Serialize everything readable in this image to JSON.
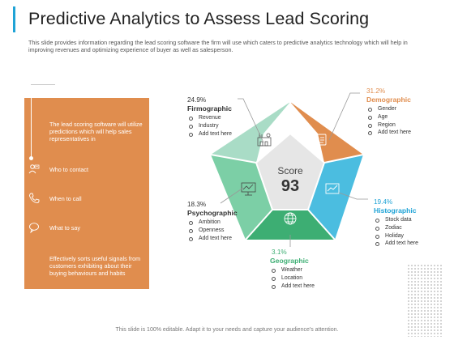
{
  "title": "Predictive Analytics to Assess Lead Scoring",
  "subtitle": "This slide provides information regarding the lead scoring software the firm will use which caters to predictive analytics technology which will help in improving revenues and optimizing experience of buyer as well as salesperson.",
  "panel": {
    "intro": "The lead scoring software will utilize predictions which will help sales representatives in",
    "items": [
      {
        "label": "Who to contact",
        "icon": "contact-icon"
      },
      {
        "label": "When to call",
        "icon": "phone-icon"
      },
      {
        "label": "What to say",
        "icon": "speech-bubble-icon"
      }
    ],
    "outro": "Effectively sorts useful signals from customers exhibiting about their buying behaviours  and habits",
    "color": "#e08d4e"
  },
  "center": {
    "label": "Score",
    "value": "93"
  },
  "segments": {
    "firmographic": {
      "pct": "24.9%",
      "name": "Firmographic",
      "items": [
        "Revenue",
        "Industry",
        "Add text here"
      ],
      "color": "#a9dcc6",
      "name_color": "#333333",
      "icon": "factory-icon"
    },
    "demographic": {
      "pct": "31.2%",
      "name": "Demographic",
      "items": [
        "Gender",
        "Age",
        "Region",
        "Add text here"
      ],
      "color": "#e08d4e",
      "name_color": "#e08d4e",
      "icon": "id-card-icon"
    },
    "histographic": {
      "pct": "19.4%",
      "name": "Histographic",
      "items": [
        "Stock data",
        "Zodiac",
        "Holiday",
        "Add text here"
      ],
      "color": "#4bbde0",
      "name_color": "#1fa3d6",
      "icon": "chart-board-icon"
    },
    "geographic": {
      "pct": "3.1%",
      "name": "Geographic",
      "items": [
        "Weather",
        "Location",
        "Add text here"
      ],
      "color": "#3dae73",
      "name_color": "#3dae73",
      "icon": "globe-icon"
    },
    "psychographic": {
      "pct": "18.3%",
      "name": "Psychographic",
      "items": [
        "Ambition",
        "Openness",
        "Add text here"
      ],
      "color": "#7ccfa6",
      "name_color": "#333333",
      "icon": "monitor-icon"
    }
  },
  "footer": "This slide is 100% editable. Adapt it to your needs and capture your audience's attention."
}
